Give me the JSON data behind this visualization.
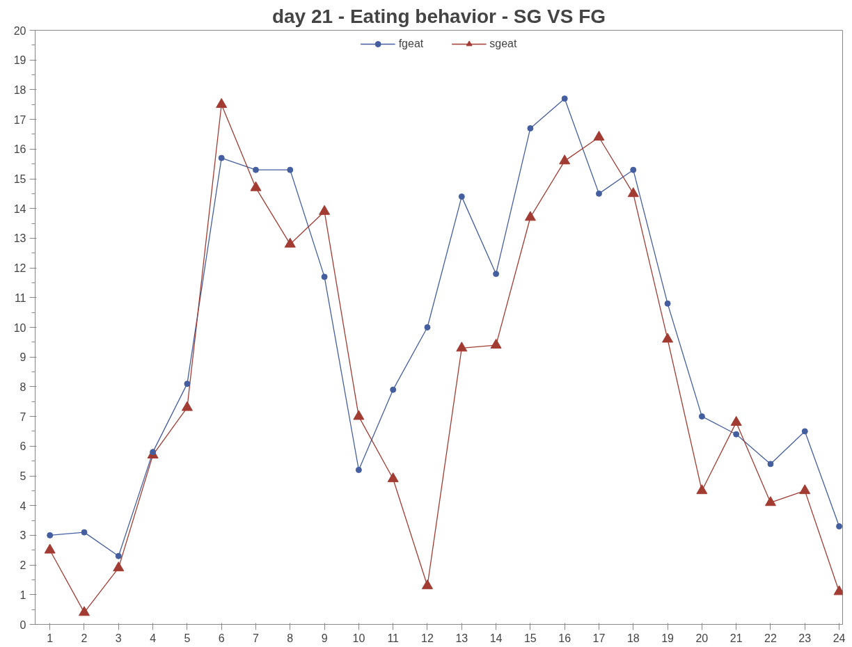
{
  "chart_data": {
    "type": "line",
    "title": "day 21 - Eating behavior - SG VS FG",
    "x": [
      1,
      2,
      3,
      4,
      5,
      6,
      7,
      8,
      9,
      10,
      11,
      12,
      13,
      14,
      15,
      16,
      17,
      18,
      19,
      20,
      21,
      22,
      23,
      24
    ],
    "series": [
      {
        "name": "fgeat",
        "color": "#445ea0",
        "marker": "circle",
        "values": [
          3.0,
          3.1,
          2.3,
          5.8,
          8.1,
          15.7,
          15.3,
          15.3,
          11.7,
          5.2,
          7.9,
          10.0,
          14.4,
          11.8,
          16.7,
          17.7,
          14.5,
          15.3,
          10.8,
          7.0,
          6.4,
          5.4,
          6.5,
          3.3
        ]
      },
      {
        "name": "sgeat",
        "color": "#a23b32",
        "marker": "triangle",
        "values": [
          2.5,
          0.4,
          1.9,
          5.7,
          7.3,
          17.5,
          14.7,
          12.8,
          13.9,
          7.0,
          4.9,
          1.3,
          9.3,
          9.4,
          13.7,
          15.6,
          16.4,
          14.5,
          9.6,
          4.5,
          6.8,
          4.1,
          4.5,
          1.1
        ]
      }
    ],
    "xlim": [
      0.57,
      24.1
    ],
    "xticks": [
      1,
      2,
      3,
      4,
      5,
      6,
      7,
      8,
      9,
      10,
      11,
      12,
      13,
      14,
      15,
      16,
      17,
      18,
      19,
      20,
      21,
      22,
      23,
      24
    ],
    "ylim": [
      0,
      20
    ],
    "yticks": [
      0,
      1,
      2,
      3,
      4,
      5,
      6,
      7,
      8,
      9,
      10,
      11,
      12,
      13,
      14,
      15,
      16,
      17,
      18,
      19,
      20
    ],
    "grid": false,
    "legend": "top",
    "line_style": "solid"
  }
}
